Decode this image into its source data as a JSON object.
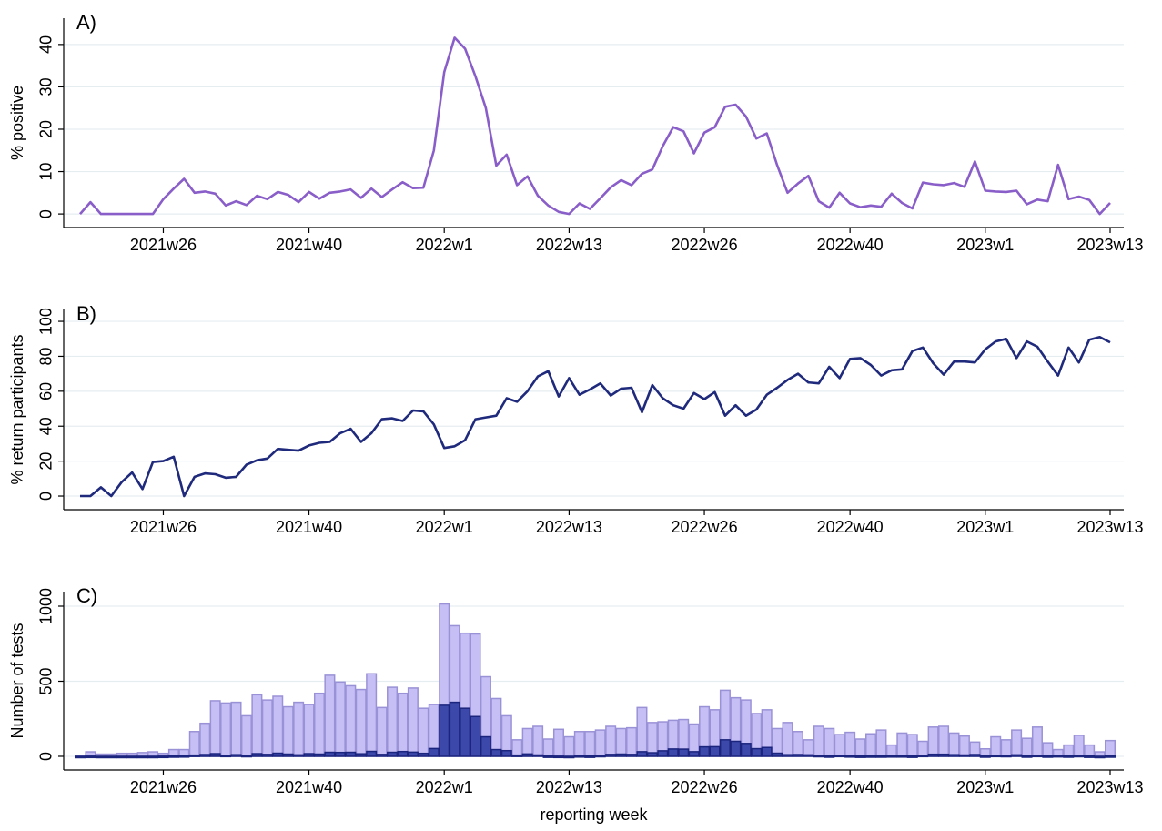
{
  "chart_data": [
    {
      "type": "line",
      "title": "A)",
      "ylabel": "% positive",
      "categories": [
        null,
        null,
        null,
        null,
        null,
        null,
        null,
        null,
        "2021w26",
        null,
        null,
        null,
        null,
        null,
        null,
        null,
        null,
        null,
        null,
        null,
        null,
        null,
        "2021w40",
        null,
        null,
        null,
        null,
        null,
        null,
        null,
        null,
        null,
        null,
        null,
        null,
        "2022w1",
        null,
        null,
        null,
        null,
        null,
        null,
        null,
        null,
        null,
        null,
        null,
        "2022w13",
        null,
        null,
        null,
        null,
        null,
        null,
        null,
        null,
        null,
        null,
        null,
        null,
        "2022w26",
        null,
        null,
        null,
        null,
        null,
        null,
        null,
        null,
        null,
        null,
        null,
        null,
        null,
        "2022w40",
        null,
        null,
        null,
        null,
        null,
        null,
        null,
        null,
        null,
        null,
        null,
        null,
        "2023w1",
        null,
        null,
        null,
        null,
        null,
        null,
        null,
        null,
        null,
        null,
        null,
        "2023w13"
      ],
      "series": [
        {
          "color": "#8a5ec8",
          "values": [
            0,
            2.8,
            0,
            0,
            0,
            0,
            0,
            0,
            3.5,
            6,
            8.3,
            5,
            5.3,
            4.8,
            2,
            3,
            2.1,
            4.3,
            3.5,
            5.2,
            4.5,
            2.8,
            5.2,
            3.6,
            5,
            5.3,
            5.8,
            3.8,
            6,
            4,
            5.8,
            7.5,
            6.1,
            6.2,
            15,
            33.5,
            41.6,
            39,
            32.5,
            25,
            11.4,
            14,
            6.8,
            8.9,
            4.3,
            2,
            0.5,
            0,
            2.5,
            1.2,
            3.7,
            6.3,
            8,
            6.8,
            9.5,
            10.5,
            16,
            20.5,
            19.5,
            14.3,
            19.2,
            20.5,
            25.3,
            25.8,
            23,
            17.8,
            19,
            11.5,
            5,
            7.2,
            9,
            3,
            1.5,
            5,
            2.5,
            1.6,
            2,
            1.7,
            4.8,
            2.6,
            1.3,
            7.4,
            7,
            6.8,
            7.3,
            6.4,
            12.4,
            5.5,
            5.3,
            5.2,
            5.5,
            2.3,
            3.4,
            3,
            11.6,
            3.5,
            4.1,
            3.3,
            0,
            2.6
          ]
        }
      ],
      "ylim": [
        -3.2,
        46.2
      ],
      "yticks": [
        0,
        10,
        20,
        30,
        40
      ],
      "grid": true
    },
    {
      "type": "line",
      "title": "B)",
      "ylabel": "% return participants",
      "categories": [
        null,
        null,
        null,
        null,
        null,
        null,
        null,
        null,
        "2021w26",
        null,
        null,
        null,
        null,
        null,
        null,
        null,
        null,
        null,
        null,
        null,
        null,
        null,
        "2021w40",
        null,
        null,
        null,
        null,
        null,
        null,
        null,
        null,
        null,
        null,
        null,
        null,
        "2022w1",
        null,
        null,
        null,
        null,
        null,
        null,
        null,
        null,
        null,
        null,
        null,
        "2022w13",
        null,
        null,
        null,
        null,
        null,
        null,
        null,
        null,
        null,
        null,
        null,
        null,
        "2022w26",
        null,
        null,
        null,
        null,
        null,
        null,
        null,
        null,
        null,
        null,
        null,
        null,
        null,
        "2022w40",
        null,
        null,
        null,
        null,
        null,
        null,
        null,
        null,
        null,
        null,
        null,
        null,
        "2023w1",
        null,
        null,
        null,
        null,
        null,
        null,
        null,
        null,
        null,
        null,
        null,
        "2023w13"
      ],
      "series": [
        {
          "color": "#1f2a7c",
          "values": [
            0,
            0,
            5,
            0,
            8,
            13.5,
            4,
            19.5,
            20,
            22.5,
            0,
            11,
            13,
            12.5,
            10.5,
            11,
            18,
            20.5,
            21.5,
            27,
            26.5,
            26,
            29,
            30.5,
            31,
            36,
            38.5,
            31,
            36,
            44,
            44.5,
            43,
            49,
            48.5,
            41,
            27.5,
            28.5,
            32,
            44,
            45,
            46,
            56,
            54,
            60,
            68.5,
            71.5,
            57,
            67.5,
            58,
            61,
            64.5,
            57.5,
            61.5,
            62,
            48,
            63.5,
            56,
            52,
            50,
            59,
            55.5,
            59.5,
            46,
            52,
            46,
            49.5,
            58,
            62,
            66.5,
            70,
            65,
            64.5,
            74,
            67.5,
            78.5,
            79,
            75,
            69,
            72,
            72.5,
            83,
            85,
            76,
            69.5,
            77,
            77,
            76.5,
            84,
            88.5,
            90,
            79,
            88.5,
            85.5,
            77,
            69,
            85,
            76.5,
            89.5,
            91,
            88
          ]
        }
      ],
      "ylim": [
        -7.8,
        106.8
      ],
      "yticks": [
        0,
        20,
        40,
        60,
        80,
        100
      ],
      "grid": true
    },
    {
      "type": "bar",
      "title": "C)",
      "ylabel": "Number of tests",
      "xlabel": "reporting week",
      "categories": [
        null,
        null,
        null,
        null,
        null,
        null,
        null,
        null,
        "2021w26",
        null,
        null,
        null,
        null,
        null,
        null,
        null,
        null,
        null,
        null,
        null,
        null,
        null,
        "2021w40",
        null,
        null,
        null,
        null,
        null,
        null,
        null,
        null,
        null,
        null,
        null,
        null,
        "2022w1",
        null,
        null,
        null,
        null,
        null,
        null,
        null,
        null,
        null,
        null,
        null,
        "2022w13",
        null,
        null,
        null,
        null,
        null,
        null,
        null,
        null,
        null,
        null,
        null,
        null,
        "2022w26",
        null,
        null,
        null,
        null,
        null,
        null,
        null,
        null,
        null,
        null,
        null,
        null,
        null,
        "2022w40",
        null,
        null,
        null,
        null,
        null,
        null,
        null,
        null,
        null,
        null,
        null,
        null,
        "2023w1",
        null,
        null,
        null,
        null,
        null,
        null,
        null,
        null,
        null,
        null,
        null,
        "2023w13"
      ],
      "series": [
        {
          "color": "#c6bff5",
          "values": [
            5,
            30,
            15,
            15,
            20,
            20,
            25,
            30,
            20,
            45,
            45,
            165,
            220,
            370,
            355,
            360,
            270,
            410,
            375,
            400,
            330,
            360,
            345,
            420,
            540,
            495,
            470,
            445,
            550,
            325,
            460,
            420,
            455,
            320,
            345,
            1015,
            870,
            820,
            815,
            530,
            385,
            270,
            110,
            185,
            200,
            115,
            180,
            130,
            165,
            165,
            175,
            200,
            185,
            190,
            325,
            225,
            230,
            240,
            245,
            215,
            330,
            310,
            440,
            390,
            375,
            285,
            310,
            185,
            225,
            165,
            110,
            200,
            185,
            145,
            160,
            115,
            150,
            175,
            75,
            155,
            145,
            100,
            195,
            200,
            155,
            135,
            95,
            50,
            130,
            110,
            175,
            120,
            195,
            90,
            45,
            75,
            140,
            75,
            30,
            105
          ]
        },
        {
          "color": "#3c49aa",
          "values": [
            0,
            1,
            0,
            0,
            0,
            0,
            0,
            0,
            1,
            3,
            4,
            8,
            12,
            18,
            7,
            11,
            6,
            18,
            13,
            21,
            15,
            10,
            18,
            15,
            27,
            26,
            27,
            17,
            33,
            13,
            27,
            32,
            28,
            20,
            52,
            340,
            360,
            320,
            265,
            130,
            45,
            38,
            8,
            16,
            9,
            2,
            1,
            0,
            4,
            2,
            6,
            13,
            15,
            13,
            31,
            24,
            37,
            49,
            48,
            31,
            63,
            64,
            110,
            100,
            86,
            51,
            59,
            21,
            11,
            12,
            10,
            6,
            3,
            7,
            4,
            2,
            3,
            3,
            4,
            4,
            2,
            7,
            14,
            14,
            11,
            9,
            12,
            3,
            7,
            6,
            10,
            3,
            7,
            3,
            5,
            3,
            6,
            2,
            0,
            3
          ]
        }
      ],
      "ylim": [
        -91,
        1097
      ],
      "yticks": [
        0,
        500,
        1000
      ],
      "grid": true
    }
  ]
}
